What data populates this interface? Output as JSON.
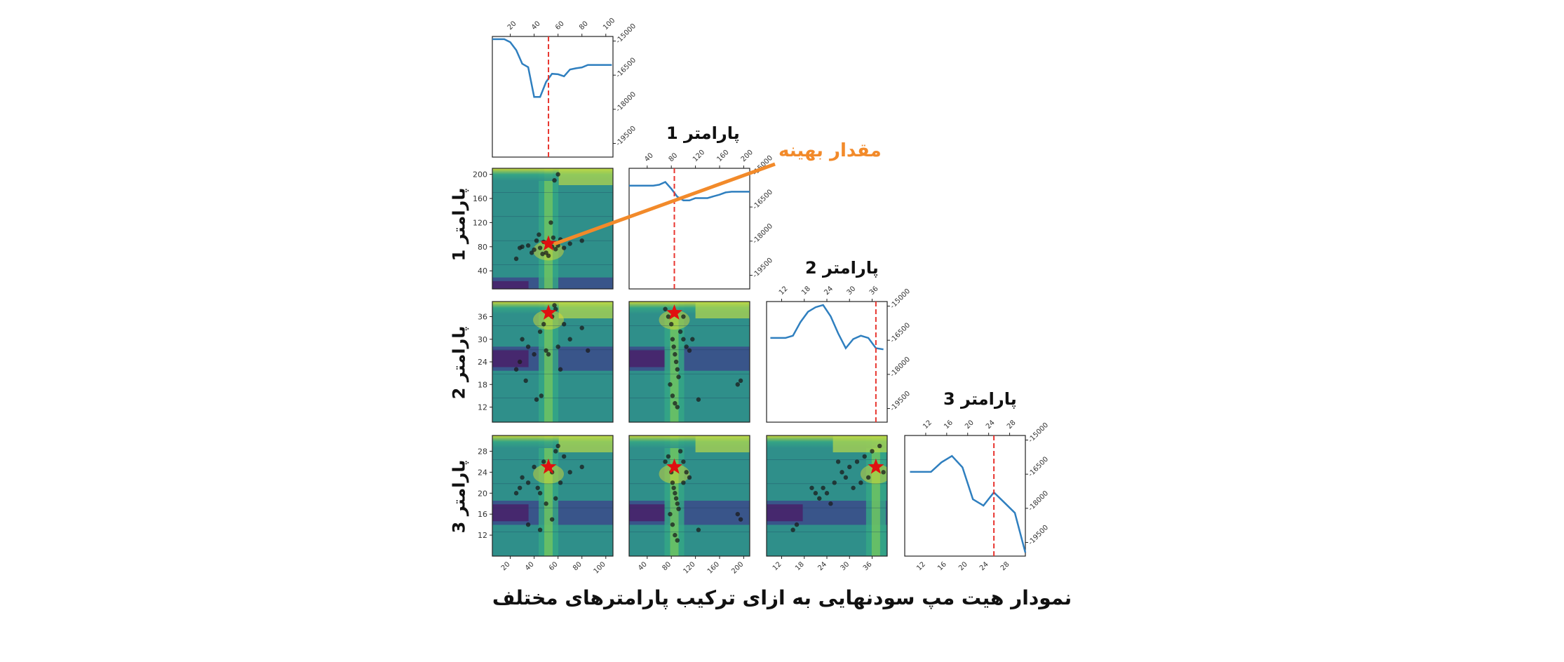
{
  "caption": "نمودار هیت مپ سودنهایی به ازای ترکیب پارامترهای مختلف",
  "annotation": "مقدار بهینه",
  "param_labels": [
    "پارامتر 1",
    "پارامتر 2",
    "پارامتر 3"
  ],
  "colors": {
    "line": "#2f7fbf",
    "optimum_line": "#e8352f",
    "annotation": "#f28a2a",
    "star": "#e01010",
    "points": "#1b1b1b",
    "heat_low": "#46286e",
    "heat_mid": "#2f8f8a",
    "heat_high": "#e6e12a"
  },
  "chart_data": {
    "type": "heatmap",
    "layout": "corner-plot",
    "parameters": [
      {
        "name": "",
        "ticks": [
          20,
          40,
          60,
          80,
          100
        ],
        "optimum": 52
      },
      {
        "name": "پارامتر 1",
        "ticks": [
          40,
          80,
          120,
          160,
          200
        ],
        "optimum": 85
      },
      {
        "name": "پارامتر 2",
        "ticks": [
          12,
          18,
          24,
          30,
          36
        ],
        "optimum": 37
      },
      {
        "name": "پارامتر 3",
        "ticks": [
          12,
          16,
          20,
          24,
          28
        ],
        "optimum": 25
      }
    ],
    "objective_ticks": [
      -15000,
      -16500,
      -18000,
      -19500
    ],
    "marginals": [
      {
        "param": 0,
        "x": [
          5,
          10,
          15,
          20,
          25,
          30,
          35,
          40,
          45,
          50,
          55,
          60,
          65,
          70,
          75,
          80,
          85,
          90,
          95,
          100,
          105
        ],
        "y": [
          -14920,
          -14920,
          -14920,
          -15050,
          -15400,
          -16000,
          -16150,
          -17460,
          -17460,
          -16800,
          -16440,
          -16460,
          -16550,
          -16250,
          -16200,
          -16160,
          -16050,
          -16050,
          -16050,
          -16050,
          -16050
        ]
      },
      {
        "param": 1,
        "x": [
          10,
          20,
          30,
          40,
          50,
          60,
          70,
          80,
          90,
          100,
          110,
          120,
          130,
          140,
          150,
          160,
          170,
          180,
          190,
          200,
          210
        ],
        "y": [
          -15560,
          -15560,
          -15560,
          -15560,
          -15560,
          -15520,
          -15400,
          -15700,
          -16050,
          -16210,
          -16210,
          -16110,
          -16110,
          -16110,
          -16030,
          -15960,
          -15860,
          -15830,
          -15830,
          -15830,
          -15830
        ]
      },
      {
        "param": 2,
        "x": [
          9,
          11,
          13,
          15,
          17,
          19,
          21,
          23,
          25,
          27,
          29,
          31,
          33,
          35,
          37,
          39
        ],
        "y": [
          -16400,
          -16400,
          -16400,
          -16300,
          -15700,
          -15250,
          -15050,
          -14950,
          -15450,
          -16200,
          -16850,
          -16450,
          -16300,
          -16400,
          -16850,
          -16900
        ]
      },
      {
        "param": 3,
        "x": [
          9,
          11,
          13,
          15,
          17,
          19,
          21,
          23,
          25,
          27,
          29,
          31
        ],
        "y": [
          -16400,
          -16400,
          -16400,
          -15980,
          -15700,
          -16200,
          -17600,
          -17880,
          -17300,
          -17750,
          -18200,
          -19950
        ]
      }
    ],
    "pair_plots": [
      {
        "row": 1,
        "col": 0,
        "star": [
          52,
          85
        ],
        "points": [
          [
            30,
            80
          ],
          [
            35,
            82
          ],
          [
            40,
            75
          ],
          [
            42,
            90
          ],
          [
            45,
            78
          ],
          [
            48,
            88
          ],
          [
            50,
            70
          ],
          [
            55,
            80
          ],
          [
            56,
            95
          ],
          [
            58,
            76
          ],
          [
            60,
            82
          ],
          [
            62,
            92
          ],
          [
            65,
            78
          ],
          [
            38,
            70
          ],
          [
            44,
            100
          ],
          [
            54,
            120
          ],
          [
            57,
            190
          ],
          [
            60,
            200
          ],
          [
            47,
            68
          ],
          [
            70,
            85
          ],
          [
            80,
            90
          ],
          [
            25,
            60
          ],
          [
            28,
            78
          ],
          [
            52,
            65
          ]
        ]
      },
      {
        "row": 2,
        "col": 0,
        "star": [
          52,
          37
        ],
        "points": [
          [
            30,
            30
          ],
          [
            35,
            28
          ],
          [
            40,
            26
          ],
          [
            45,
            32
          ],
          [
            48,
            34
          ],
          [
            50,
            27
          ],
          [
            55,
            36
          ],
          [
            58,
            38
          ],
          [
            60,
            28
          ],
          [
            62,
            22
          ],
          [
            65,
            34
          ],
          [
            70,
            30
          ],
          [
            25,
            22
          ],
          [
            28,
            24
          ],
          [
            33,
            19
          ],
          [
            42,
            14
          ],
          [
            46,
            15
          ],
          [
            80,
            33
          ],
          [
            85,
            27
          ],
          [
            57,
            39
          ],
          [
            52,
            26
          ]
        ]
      },
      {
        "row": 3,
        "col": 0,
        "star": [
          52,
          25
        ],
        "points": [
          [
            30,
            23
          ],
          [
            35,
            22
          ],
          [
            40,
            25
          ],
          [
            43,
            21
          ],
          [
            45,
            20
          ],
          [
            48,
            26
          ],
          [
            50,
            18
          ],
          [
            55,
            24
          ],
          [
            58,
            28
          ],
          [
            60,
            29
          ],
          [
            62,
            22
          ],
          [
            65,
            27
          ],
          [
            70,
            24
          ],
          [
            25,
            20
          ],
          [
            28,
            21
          ],
          [
            35,
            14
          ],
          [
            45,
            13
          ],
          [
            55,
            15
          ],
          [
            80,
            25
          ],
          [
            58,
            19
          ]
        ]
      },
      {
        "row": 2,
        "col": 1,
        "star": [
          85,
          37
        ],
        "points": [
          [
            70,
            38
          ],
          [
            75,
            36
          ],
          [
            80,
            34
          ],
          [
            82,
            30
          ],
          [
            84,
            28
          ],
          [
            86,
            26
          ],
          [
            88,
            24
          ],
          [
            90,
            22
          ],
          [
            92,
            20
          ],
          [
            95,
            32
          ],
          [
            100,
            30
          ],
          [
            105,
            28
          ],
          [
            110,
            27
          ],
          [
            78,
            18
          ],
          [
            82,
            15
          ],
          [
            86,
            13
          ],
          [
            90,
            12
          ],
          [
            125,
            14
          ],
          [
            195,
            19
          ],
          [
            190,
            18
          ],
          [
            100,
            36
          ],
          [
            115,
            30
          ]
        ]
      },
      {
        "row": 3,
        "col": 1,
        "star": [
          85,
          25
        ],
        "points": [
          [
            70,
            26
          ],
          [
            75,
            27
          ],
          [
            80,
            24
          ],
          [
            82,
            22
          ],
          [
            84,
            21
          ],
          [
            86,
            20
          ],
          [
            88,
            19
          ],
          [
            90,
            18
          ],
          [
            92,
            17
          ],
          [
            95,
            28
          ],
          [
            100,
            26
          ],
          [
            105,
            24
          ],
          [
            110,
            23
          ],
          [
            78,
            16
          ],
          [
            82,
            14
          ],
          [
            86,
            12
          ],
          [
            90,
            11
          ],
          [
            125,
            13
          ],
          [
            195,
            15
          ],
          [
            190,
            16
          ],
          [
            100,
            22
          ]
        ]
      },
      {
        "row": 3,
        "col": 2,
        "star": [
          37,
          25
        ],
        "points": [
          [
            20,
            21
          ],
          [
            21,
            20
          ],
          [
            22,
            19
          ],
          [
            23,
            21
          ],
          [
            24,
            20
          ],
          [
            25,
            18
          ],
          [
            26,
            22
          ],
          [
            28,
            24
          ],
          [
            30,
            25
          ],
          [
            32,
            26
          ],
          [
            34,
            27
          ],
          [
            36,
            28
          ],
          [
            38,
            29
          ],
          [
            35,
            23
          ],
          [
            33,
            22
          ],
          [
            31,
            21
          ],
          [
            29,
            23
          ],
          [
            15,
            13
          ],
          [
            16,
            14
          ],
          [
            27,
            26
          ],
          [
            39,
            24
          ]
        ]
      }
    ]
  }
}
